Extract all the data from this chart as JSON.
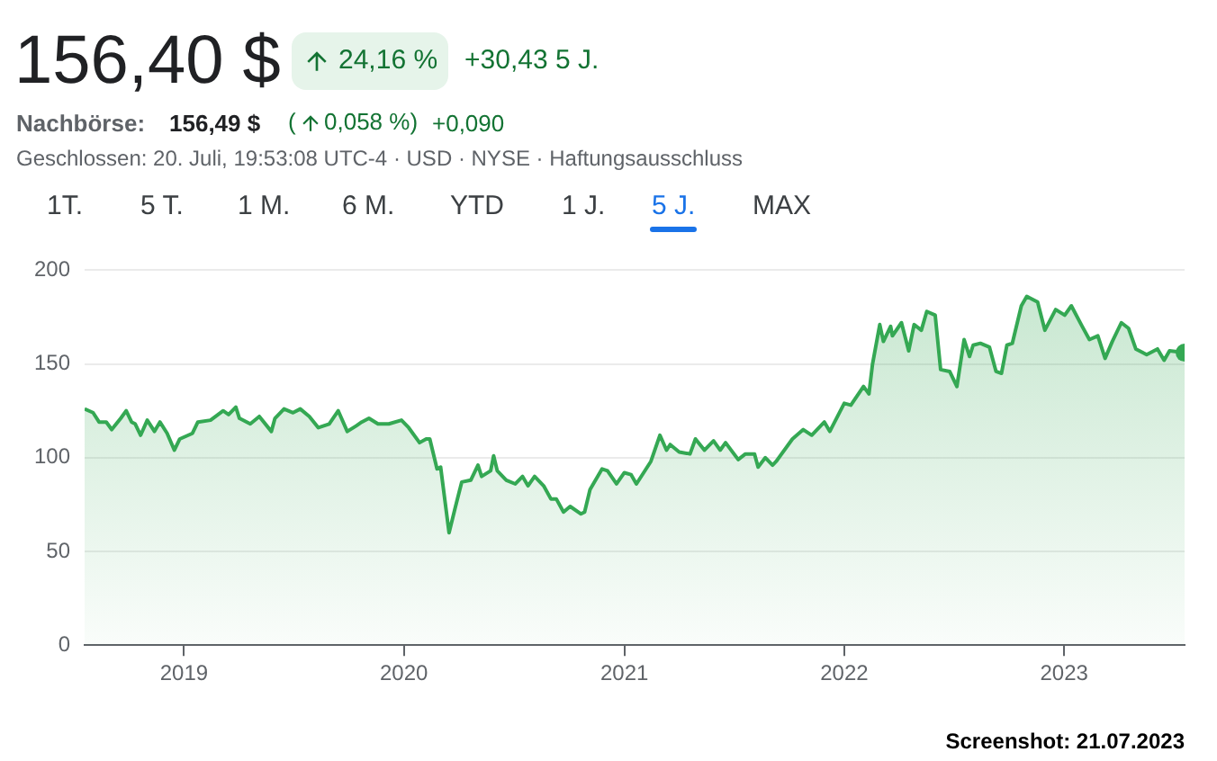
{
  "chart_data": {
    "type": "area",
    "title": "156,40 $",
    "annotations": [
      "24,16 %",
      "+30,43 5 J.",
      "Nachbörse:",
      "156,49 $",
      "(",
      "0,058 %)",
      "+0,090",
      "Geschlossen: 20. Juli, 19:53:08 UTC-4 · USD · NYSE · Haftungsausschluss",
      "1T.",
      "5 T.",
      "1 M.",
      "6 M.",
      "YTD",
      "1 J.",
      "5 J.",
      "MAX",
      "Screenshot: 21.07.2023"
    ],
    "x": [
      "2018-07-20",
      "2018-08-03",
      "2018-08-13",
      "2018-08-25",
      "2018-09-03",
      "2018-09-18",
      "2018-09-27",
      "2018-10-06",
      "2018-10-12",
      "2018-10-21",
      "2018-11-01",
      "2018-11-13",
      "2018-11-22",
      "2018-12-04",
      "2018-12-16",
      "2018-12-25",
      "2019-01-15",
      "2019-01-24",
      "2019-02-14",
      "2019-03-07",
      "2019-03-16",
      "2019-03-28",
      "2019-04-03",
      "2019-04-21",
      "2019-05-06",
      "2019-05-26",
      "2019-06-01",
      "2019-06-16",
      "2019-07-01",
      "2019-07-13",
      "2019-07-28",
      "2019-08-12",
      "2019-08-30",
      "2019-09-14",
      "2019-09-29",
      "2019-10-14",
      "2019-10-23",
      "2019-11-04",
      "2019-11-19",
      "2019-12-07",
      "2019-12-28",
      "2020-01-09",
      "2020-01-27",
      "2020-02-07",
      "2020-02-13",
      "2020-02-25",
      "2020-03-02",
      "2020-03-16",
      "2020-03-26",
      "2020-04-06",
      "2020-04-21",
      "2020-05-03",
      "2020-05-09",
      "2020-05-24",
      "2020-05-29",
      "2020-06-04",
      "2020-06-19",
      "2020-07-04",
      "2020-07-16",
      "2020-07-25",
      "2020-08-05",
      "2020-08-20",
      "2020-09-01",
      "2020-09-10",
      "2020-09-22",
      "2020-10-03",
      "2020-10-21",
      "2020-10-27",
      "2020-11-05",
      "2020-11-25",
      "2020-12-04",
      "2020-12-19",
      "2021-01-01",
      "2021-01-12",
      "2021-01-21",
      "2021-02-14",
      "2021-03-01",
      "2021-03-12",
      "2021-03-18",
      "2021-04-02",
      "2021-04-20",
      "2021-04-29",
      "2021-05-14",
      "2021-05-29",
      "2021-06-09",
      "2021-06-18",
      "2021-07-09",
      "2021-07-21",
      "2021-08-05",
      "2021-08-11",
      "2021-08-23",
      "2021-09-04",
      "2021-09-10",
      "2021-10-07",
      "2021-10-25",
      "2021-11-08",
      "2021-11-29",
      "2021-12-08",
      "2022-01-01",
      "2022-01-12",
      "2022-02-02",
      "2022-02-11",
      "2022-02-17",
      "2022-03-01",
      "2022-03-07",
      "2022-03-19",
      "2022-03-22",
      "2022-04-06",
      "2022-04-18",
      "2022-04-27",
      "2022-05-09",
      "2022-05-18",
      "2022-06-01",
      "2022-06-10",
      "2022-06-25",
      "2022-07-07",
      "2022-07-19",
      "2022-07-28",
      "2022-08-03",
      "2022-08-15",
      "2022-08-30",
      "2022-09-10",
      "2022-09-19",
      "2022-09-28",
      "2022-10-07",
      "2022-10-22",
      "2022-10-31",
      "2022-11-18",
      "2022-11-30",
      "2022-12-18",
      "2023-01-02",
      "2023-01-13",
      "2023-01-31",
      "2023-02-12",
      "2023-02-26",
      "2023-03-10",
      "2023-03-22",
      "2023-04-06",
      "2023-04-18",
      "2023-04-30",
      "2023-05-18",
      "2023-06-05",
      "2023-06-16",
      "2023-06-25",
      "2023-07-20"
    ],
    "values": [
      126,
      124,
      119,
      119,
      115,
      121,
      125,
      119,
      118,
      112,
      120,
      114,
      119,
      113,
      104,
      110,
      113,
      119,
      120,
      125,
      123,
      127,
      121,
      118,
      122,
      114,
      121,
      126,
      124,
      126,
      122,
      116,
      118,
      125,
      114,
      117,
      119,
      121,
      118,
      118,
      120,
      116,
      108,
      110,
      110,
      94,
      95,
      60,
      73,
      87,
      88,
      96,
      90,
      93,
      101,
      93,
      88,
      86,
      90,
      85,
      90,
      85,
      78,
      78,
      71,
      74,
      70,
      71,
      83,
      94,
      93,
      86,
      92,
      91,
      86,
      98,
      112,
      104,
      107,
      103,
      102,
      110,
      104,
      109,
      104,
      108,
      99,
      102,
      102,
      95,
      100,
      96,
      98,
      110,
      115,
      112,
      119,
      114,
      129,
      128,
      138,
      134,
      150,
      171,
      162,
      170,
      165,
      172,
      157,
      171,
      168,
      178,
      176,
      147,
      146,
      138,
      163,
      154,
      160,
      161,
      159,
      146,
      145,
      160,
      161,
      181,
      186,
      183,
      168,
      179,
      176,
      181,
      170,
      163,
      165,
      153,
      162,
      172,
      169,
      158,
      155,
      158,
      152,
      157,
      156
    ],
    "color": "#34a853",
    "xlim": [
      "2018-07-20",
      "2023-07-20"
    ],
    "xticks": [
      {
        "value": "2019-01-01",
        "label": "2019"
      },
      {
        "value": "2020-01-01",
        "label": "2020"
      },
      {
        "value": "2021-01-01",
        "label": "2021"
      },
      {
        "value": "2022-01-01",
        "label": "2022"
      },
      {
        "value": "2023-01-01",
        "label": "2023"
      }
    ],
    "ylim": [
      0,
      200
    ],
    "yticks": [
      0,
      50,
      100,
      150,
      200
    ],
    "grid": "y",
    "legend": false
  }
}
